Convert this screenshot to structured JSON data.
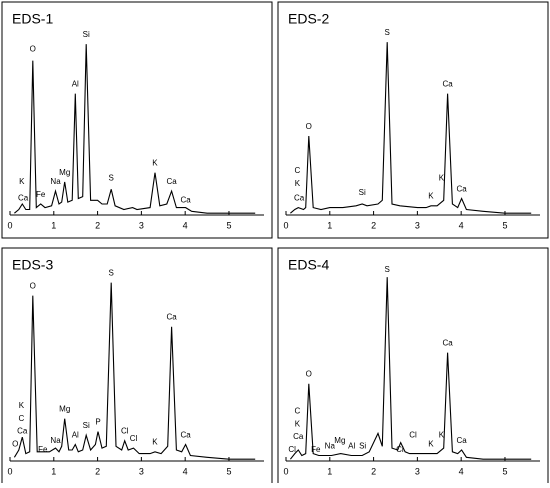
{
  "chart_data": [
    {
      "type": "line",
      "title": "EDS-1",
      "color": "#000000",
      "xlim": [
        0,
        5.8
      ],
      "xticks": [
        0,
        1,
        2,
        3,
        4,
        5
      ],
      "ylim": [
        0,
        105
      ],
      "x": [
        0.1,
        0.2,
        0.28,
        0.36,
        0.45,
        0.52,
        0.6,
        0.7,
        0.8,
        0.95,
        1.04,
        1.12,
        1.18,
        1.25,
        1.32,
        1.42,
        1.49,
        1.56,
        1.66,
        1.74,
        1.84,
        2.0,
        2.1,
        2.22,
        2.31,
        2.4,
        2.6,
        2.8,
        2.9,
        3.2,
        3.31,
        3.42,
        3.58,
        3.69,
        3.8,
        4.01,
        4.15,
        4.5,
        5.0,
        5.6
      ],
      "values": [
        1,
        3,
        6,
        3,
        3,
        84,
        4,
        6,
        4,
        5,
        13,
        6,
        7,
        18,
        7,
        8,
        66,
        9,
        10,
        93,
        8,
        8,
        6,
        6,
        14,
        5,
        3,
        4,
        3,
        4,
        23,
        5,
        6,
        13,
        4,
        4,
        2,
        1,
        1,
        1
      ],
      "annotations": [
        {
          "text": "O",
          "x": 0.52,
          "y": 90
        },
        {
          "text": "Si",
          "x": 1.74,
          "y": 98
        },
        {
          "text": "Al",
          "x": 1.49,
          "y": 71
        },
        {
          "text": "Mg",
          "x": 1.25,
          "y": 23
        },
        {
          "text": "Na",
          "x": 1.04,
          "y": 18
        },
        {
          "text": "Fe",
          "x": 0.7,
          "y": 11
        },
        {
          "text": "K",
          "x": 0.27,
          "y": 18
        },
        {
          "text": "Ca",
          "x": 0.3,
          "y": 9
        },
        {
          "text": "S",
          "x": 2.31,
          "y": 20
        },
        {
          "text": "K",
          "x": 3.31,
          "y": 28
        },
        {
          "text": "Ca",
          "x": 3.69,
          "y": 18
        },
        {
          "text": "Ca",
          "x": 4.01,
          "y": 8
        }
      ]
    },
    {
      "type": "line",
      "title": "EDS-2",
      "color": "#000000",
      "xlim": [
        0,
        5.8
      ],
      "xticks": [
        0,
        1,
        2,
        3,
        4,
        5
      ],
      "ylim": [
        0,
        105
      ],
      "x": [
        0.1,
        0.2,
        0.28,
        0.4,
        0.45,
        0.52,
        0.62,
        0.8,
        1.0,
        1.3,
        1.6,
        1.74,
        1.85,
        2.1,
        2.2,
        2.31,
        2.42,
        2.6,
        3.0,
        3.2,
        3.31,
        3.45,
        3.6,
        3.69,
        3.8,
        3.92,
        4.01,
        4.12,
        4.5,
        5.0,
        5.6
      ],
      "values": [
        1,
        3,
        4,
        3,
        4,
        43,
        4,
        3,
        4,
        4,
        5,
        6,
        5,
        6,
        8,
        94,
        6,
        5,
        4,
        4,
        5,
        5,
        8,
        66,
        6,
        4,
        9,
        3,
        2,
        1,
        1
      ],
      "annotations": [
        {
          "text": "O",
          "x": 0.52,
          "y": 48
        },
        {
          "text": "C",
          "x": 0.26,
          "y": 24
        },
        {
          "text": "K",
          "x": 0.26,
          "y": 17
        },
        {
          "text": "Ca",
          "x": 0.3,
          "y": 9
        },
        {
          "text": "Si",
          "x": 1.74,
          "y": 12
        },
        {
          "text": "S",
          "x": 2.31,
          "y": 99
        },
        {
          "text": "K",
          "x": 3.31,
          "y": 10
        },
        {
          "text": "K",
          "x": 3.55,
          "y": 20
        },
        {
          "text": "Ca",
          "x": 3.69,
          "y": 71
        },
        {
          "text": "Ca",
          "x": 4.01,
          "y": 14
        }
      ]
    },
    {
      "type": "line",
      "title": "EDS-3",
      "color": "#000000",
      "xlim": [
        0,
        5.8
      ],
      "xticks": [
        0,
        1,
        2,
        3,
        4,
        5
      ],
      "ylim": [
        0,
        105
      ],
      "x": [
        0.1,
        0.2,
        0.28,
        0.36,
        0.45,
        0.52,
        0.62,
        0.75,
        0.9,
        1.04,
        1.12,
        1.18,
        1.25,
        1.34,
        1.42,
        1.49,
        1.56,
        1.66,
        1.74,
        1.84,
        1.95,
        2.01,
        2.1,
        2.2,
        2.31,
        2.42,
        2.55,
        2.62,
        2.7,
        2.82,
        2.95,
        3.2,
        3.31,
        3.45,
        3.6,
        3.69,
        3.8,
        3.92,
        4.01,
        4.12,
        4.5,
        5.0,
        5.6
      ],
      "values": [
        2,
        6,
        13,
        4,
        5,
        90,
        5,
        5,
        5,
        7,
        5,
        8,
        23,
        6,
        6,
        9,
        5,
        6,
        14,
        6,
        9,
        16,
        7,
        8,
        97,
        8,
        6,
        11,
        6,
        7,
        4,
        4,
        5,
        4,
        8,
        73,
        6,
        5,
        9,
        3,
        2,
        1,
        1
      ],
      "annotations": [
        {
          "text": "O",
          "x": 0.52,
          "y": 95
        },
        {
          "text": "K",
          "x": 0.26,
          "y": 30
        },
        {
          "text": "C",
          "x": 0.26,
          "y": 23
        },
        {
          "text": "Ca",
          "x": 0.28,
          "y": 16
        },
        {
          "text": "O",
          "x": 0.12,
          "y": 9
        },
        {
          "text": "Fe",
          "x": 0.75,
          "y": 6
        },
        {
          "text": "Na",
          "x": 1.04,
          "y": 11
        },
        {
          "text": "Mg",
          "x": 1.25,
          "y": 28
        },
        {
          "text": "Al",
          "x": 1.49,
          "y": 14
        },
        {
          "text": "Si",
          "x": 1.74,
          "y": 19
        },
        {
          "text": "P",
          "x": 2.01,
          "y": 21
        },
        {
          "text": "S",
          "x": 2.31,
          "y": 102
        },
        {
          "text": "Cl",
          "x": 2.62,
          "y": 16
        },
        {
          "text": "Cl",
          "x": 2.82,
          "y": 12
        },
        {
          "text": "K",
          "x": 3.31,
          "y": 10
        },
        {
          "text": "Ca",
          "x": 3.69,
          "y": 78
        },
        {
          "text": "Ca",
          "x": 4.01,
          "y": 14
        }
      ]
    },
    {
      "type": "line",
      "title": "EDS-4",
      "color": "#000000",
      "xlim": [
        0,
        5.8
      ],
      "xticks": [
        0,
        1,
        2,
        3,
        4,
        5
      ],
      "ylim": [
        0,
        105
      ],
      "x": [
        0.1,
        0.2,
        0.28,
        0.36,
        0.45,
        0.52,
        0.62,
        0.75,
        1.04,
        1.25,
        1.49,
        1.74,
        1.9,
        2.1,
        2.2,
        2.31,
        2.42,
        2.55,
        2.62,
        2.72,
        2.82,
        3.1,
        3.31,
        3.45,
        3.6,
        3.69,
        3.8,
        3.92,
        4.01,
        4.12,
        4.5,
        5.0,
        5.6
      ],
      "values": [
        1,
        4,
        6,
        3,
        4,
        42,
        4,
        3,
        3,
        4,
        3,
        3,
        5,
        15,
        8,
        100,
        7,
        6,
        10,
        5,
        4,
        4,
        4,
        4,
        7,
        59,
        5,
        4,
        6,
        2,
        1,
        1,
        1
      ],
      "annotations": [
        {
          "text": "S",
          "x": 2.31,
          "y": 104
        },
        {
          "text": "O",
          "x": 0.52,
          "y": 47
        },
        {
          "text": "C",
          "x": 0.26,
          "y": 27
        },
        {
          "text": "K",
          "x": 0.26,
          "y": 20
        },
        {
          "text": "Ca",
          "x": 0.28,
          "y": 13
        },
        {
          "text": "Cl",
          "x": 0.14,
          "y": 6
        },
        {
          "text": "Fe",
          "x": 0.68,
          "y": 6
        },
        {
          "text": "Na",
          "x": 1.0,
          "y": 8
        },
        {
          "text": "Mg",
          "x": 1.23,
          "y": 11
        },
        {
          "text": "Al",
          "x": 1.5,
          "y": 8
        },
        {
          "text": "Si",
          "x": 1.75,
          "y": 8
        },
        {
          "text": "Cl",
          "x": 2.6,
          "y": 6
        },
        {
          "text": "Cl",
          "x": 2.9,
          "y": 14
        },
        {
          "text": "K",
          "x": 3.31,
          "y": 9
        },
        {
          "text": "K",
          "x": 3.55,
          "y": 14
        },
        {
          "text": "Ca",
          "x": 3.69,
          "y": 64
        },
        {
          "text": "Ca",
          "x": 4.01,
          "y": 11
        }
      ]
    }
  ]
}
